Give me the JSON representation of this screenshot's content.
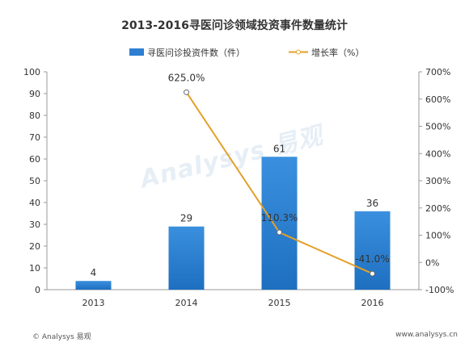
{
  "chart_data": {
    "type": "bar",
    "title": "2013-2016寻医问诊领域投资事件数量统计",
    "categories": [
      "2013",
      "2014",
      "2015",
      "2016"
    ],
    "series": [
      {
        "name": "寻医问诊投资件数（件）",
        "type": "bar",
        "axis": "left",
        "values": [
          4,
          29,
          61,
          36
        ],
        "labels": [
          "4",
          "29",
          "61",
          "36"
        ],
        "color": "#2e7fd1"
      },
      {
        "name": "增长率（%）",
        "type": "line",
        "axis": "right",
        "values": [
          null,
          625.0,
          110.3,
          -41.0
        ],
        "labels": [
          "",
          "625.0%",
          "110.3%",
          "-41.0%"
        ],
        "color": "#e3a02a"
      }
    ],
    "y_left": {
      "min": 0,
      "max": 100,
      "ticks": [
        "0",
        "10",
        "20",
        "30",
        "40",
        "50",
        "60",
        "70",
        "80",
        "90",
        "100"
      ]
    },
    "y_right": {
      "min": -100,
      "max": 700,
      "ticks": [
        "-100%",
        "0%",
        "100%",
        "200%",
        "300%",
        "400%",
        "500%",
        "600%",
        "700%"
      ]
    },
    "legend_position": "top-center",
    "grid": false
  },
  "watermark": "Analysys 易观",
  "footer": {
    "source": "© Analysys 易观",
    "website": "www.analysys.cn"
  }
}
